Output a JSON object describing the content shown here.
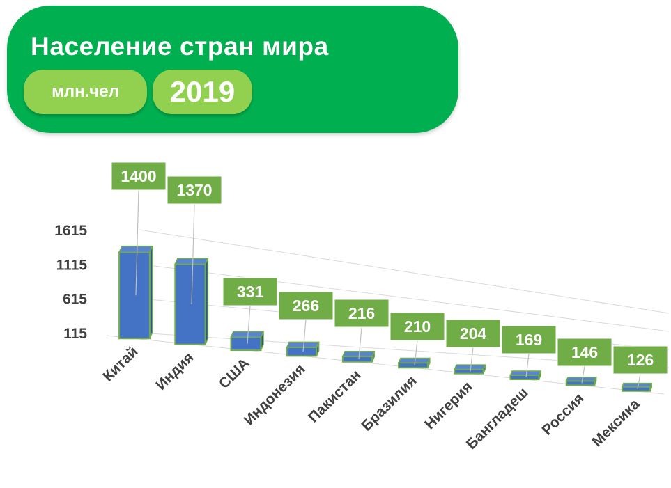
{
  "header": {
    "title": "Население стран мира",
    "unit": "млн.чел",
    "year": "2019"
  },
  "chart_data": {
    "type": "bar",
    "style": "3d-perspective",
    "categories": [
      "Китай",
      "Индия",
      "США",
      "Индонезия",
      "Пакистан",
      "Бразилия",
      "Нигерия",
      "Бангладеш",
      "Россия",
      "Мексика"
    ],
    "values": [
      1400,
      1370,
      331,
      266,
      216,
      210,
      204,
      169,
      146,
      126
    ],
    "yticks": [
      "115",
      "615",
      "1115",
      "1615"
    ],
    "ylim": [
      115,
      1615
    ],
    "grid": true,
    "data_labels": true,
    "colors": {
      "bar_fill": "#4472c4",
      "bar_side": "#2f5597",
      "bar_edge": "#70ad47",
      "label_bg": "#70ad47",
      "label_text": "#ffffff",
      "grid": "#d9d9d9",
      "axis_text": "#404040",
      "banner": "#00b050",
      "pill": "#92d050"
    }
  }
}
